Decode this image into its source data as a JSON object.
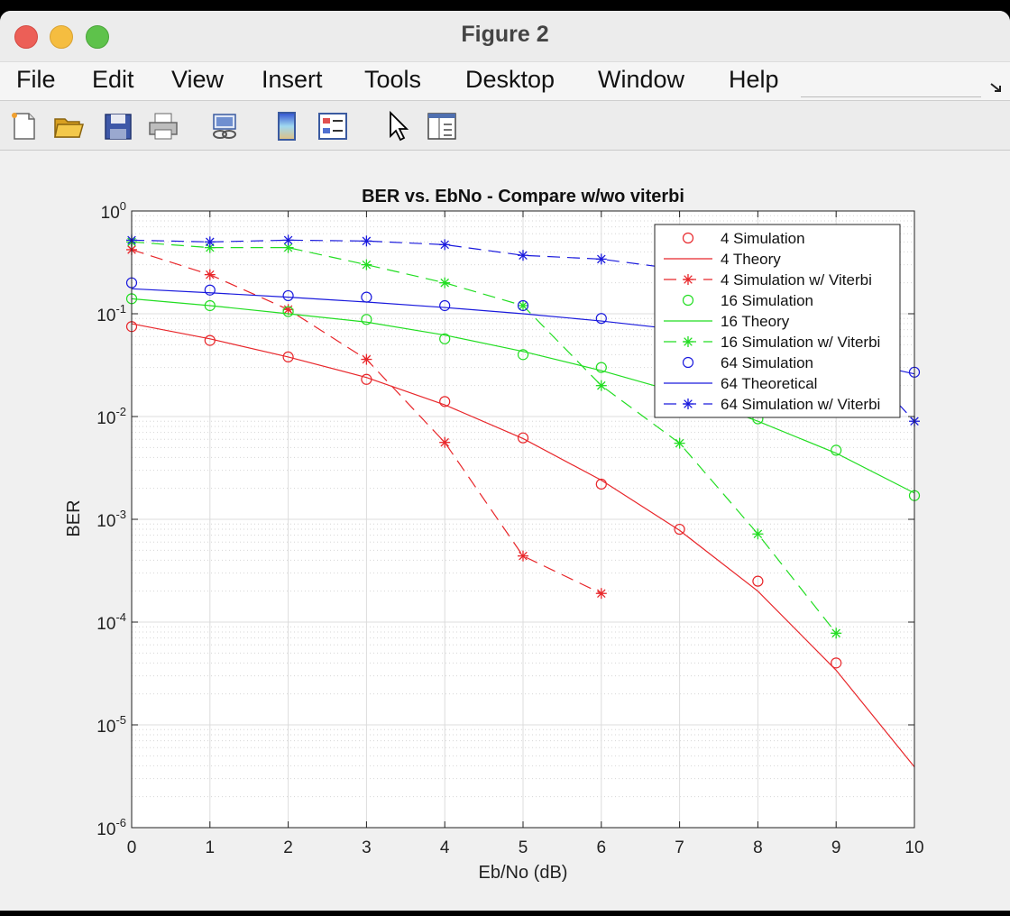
{
  "window": {
    "title": "Figure 2"
  },
  "menu": [
    "File",
    "Edit",
    "View",
    "Insert",
    "Tools",
    "Desktop",
    "Window",
    "Help"
  ],
  "toolbar_icons": [
    "new-figure-icon",
    "open-folder-icon",
    "save-icon",
    "print-icon",
    "link-icon",
    "colorbar-icon",
    "legend-icon",
    "pointer-icon",
    "property-inspector-icon"
  ],
  "colors": {
    "red": "#e8262a",
    "green": "#22dd22",
    "blue": "#1a1add"
  },
  "chart_data": {
    "type": "line",
    "title": "BER vs. EbNo - Compare w/wo viterbi",
    "xlabel": "Eb/No (dB)",
    "ylabel": "BER",
    "xlim": [
      0,
      10
    ],
    "ylim": [
      1e-06,
      1
    ],
    "yscale": "log",
    "xticks": [
      "0",
      "1",
      "2",
      "3",
      "4",
      "5",
      "6",
      "7",
      "8",
      "9",
      "10"
    ],
    "yticks": [
      {
        "base": "10",
        "exp": "0"
      },
      {
        "base": "10",
        "exp": "-1"
      },
      {
        "base": "10",
        "exp": "-2"
      },
      {
        "base": "10",
        "exp": "-3"
      },
      {
        "base": "10",
        "exp": "-4"
      },
      {
        "base": "10",
        "exp": "-5"
      },
      {
        "base": "10",
        "exp": "-6"
      }
    ],
    "grid": true,
    "legend_position": "top-right",
    "series": [
      {
        "name": "4 Simulation",
        "color": "red",
        "line": "none",
        "marker": "o",
        "x": [
          0,
          1,
          2,
          3,
          4,
          5,
          6,
          7,
          8,
          9
        ],
        "y": [
          0.075,
          0.055,
          0.038,
          0.023,
          0.014,
          0.0062,
          0.0022,
          0.0008,
          0.00025,
          4e-05
        ]
      },
      {
        "name": "4 Theory",
        "color": "red",
        "line": "solid",
        "marker": "none",
        "x": [
          0,
          1,
          2,
          3,
          4,
          5,
          6,
          7,
          8,
          9,
          10
        ],
        "y": [
          0.08,
          0.057,
          0.038,
          0.024,
          0.013,
          0.0061,
          0.0024,
          0.00078,
          0.0002,
          3.4e-05,
          3.9e-06
        ]
      },
      {
        "name": "4 Simulation w/ Viterbi",
        "color": "red",
        "line": "dashed",
        "marker": "*",
        "x": [
          0,
          1,
          2,
          3,
          4,
          5,
          6
        ],
        "y": [
          0.42,
          0.24,
          0.11,
          0.036,
          0.0056,
          0.00044,
          0.00019
        ]
      },
      {
        "name": "16 Simulation",
        "color": "green",
        "line": "none",
        "marker": "o",
        "x": [
          0,
          1,
          2,
          3,
          4,
          5,
          6,
          7,
          8,
          9,
          10
        ],
        "y": [
          0.14,
          0.12,
          0.105,
          0.088,
          0.057,
          0.04,
          0.03,
          0.018,
          0.0095,
          0.0047,
          0.0017
        ]
      },
      {
        "name": "16 Theory",
        "color": "green",
        "line": "solid",
        "marker": "none",
        "x": [
          0,
          1,
          2,
          3,
          4,
          5,
          6,
          7,
          8,
          9,
          10
        ],
        "y": [
          0.14,
          0.12,
          0.1,
          0.083,
          0.062,
          0.043,
          0.028,
          0.017,
          0.009,
          0.0044,
          0.0018
        ]
      },
      {
        "name": "16 Simulation w/ Viterbi",
        "color": "green",
        "line": "dashed",
        "marker": "*",
        "x": [
          0,
          1,
          2,
          3,
          4,
          5,
          6,
          7,
          8,
          9
        ],
        "y": [
          0.5,
          0.44,
          0.44,
          0.3,
          0.2,
          0.12,
          0.02,
          0.0055,
          0.00072,
          7.8e-05
        ]
      },
      {
        "name": "64 Simulation",
        "color": "blue",
        "line": "none",
        "marker": "o",
        "x": [
          0,
          1,
          2,
          3,
          4,
          5,
          6,
          7,
          8,
          9,
          10
        ],
        "y": [
          0.2,
          0.17,
          0.15,
          0.145,
          0.12,
          0.12,
          0.09,
          0.071,
          0.053,
          0.038,
          0.027
        ]
      },
      {
        "name": "64 Theoretical",
        "color": "blue",
        "line": "solid",
        "marker": "none",
        "x": [
          0,
          1,
          2,
          3,
          4,
          5,
          6,
          7,
          8,
          9,
          10
        ],
        "y": [
          0.175,
          0.16,
          0.145,
          0.13,
          0.115,
          0.1,
          0.085,
          0.07,
          0.052,
          0.038,
          0.026
        ]
      },
      {
        "name": "64 Simulation w/ Viterbi",
        "color": "blue",
        "line": "dashed",
        "marker": "*",
        "x": [
          0,
          1,
          2,
          3,
          4,
          5,
          6,
          7,
          8,
          9,
          10
        ],
        "y": [
          0.52,
          0.5,
          0.52,
          0.51,
          0.47,
          0.37,
          0.34,
          0.27,
          0.18,
          0.06,
          0.009
        ]
      }
    ]
  }
}
